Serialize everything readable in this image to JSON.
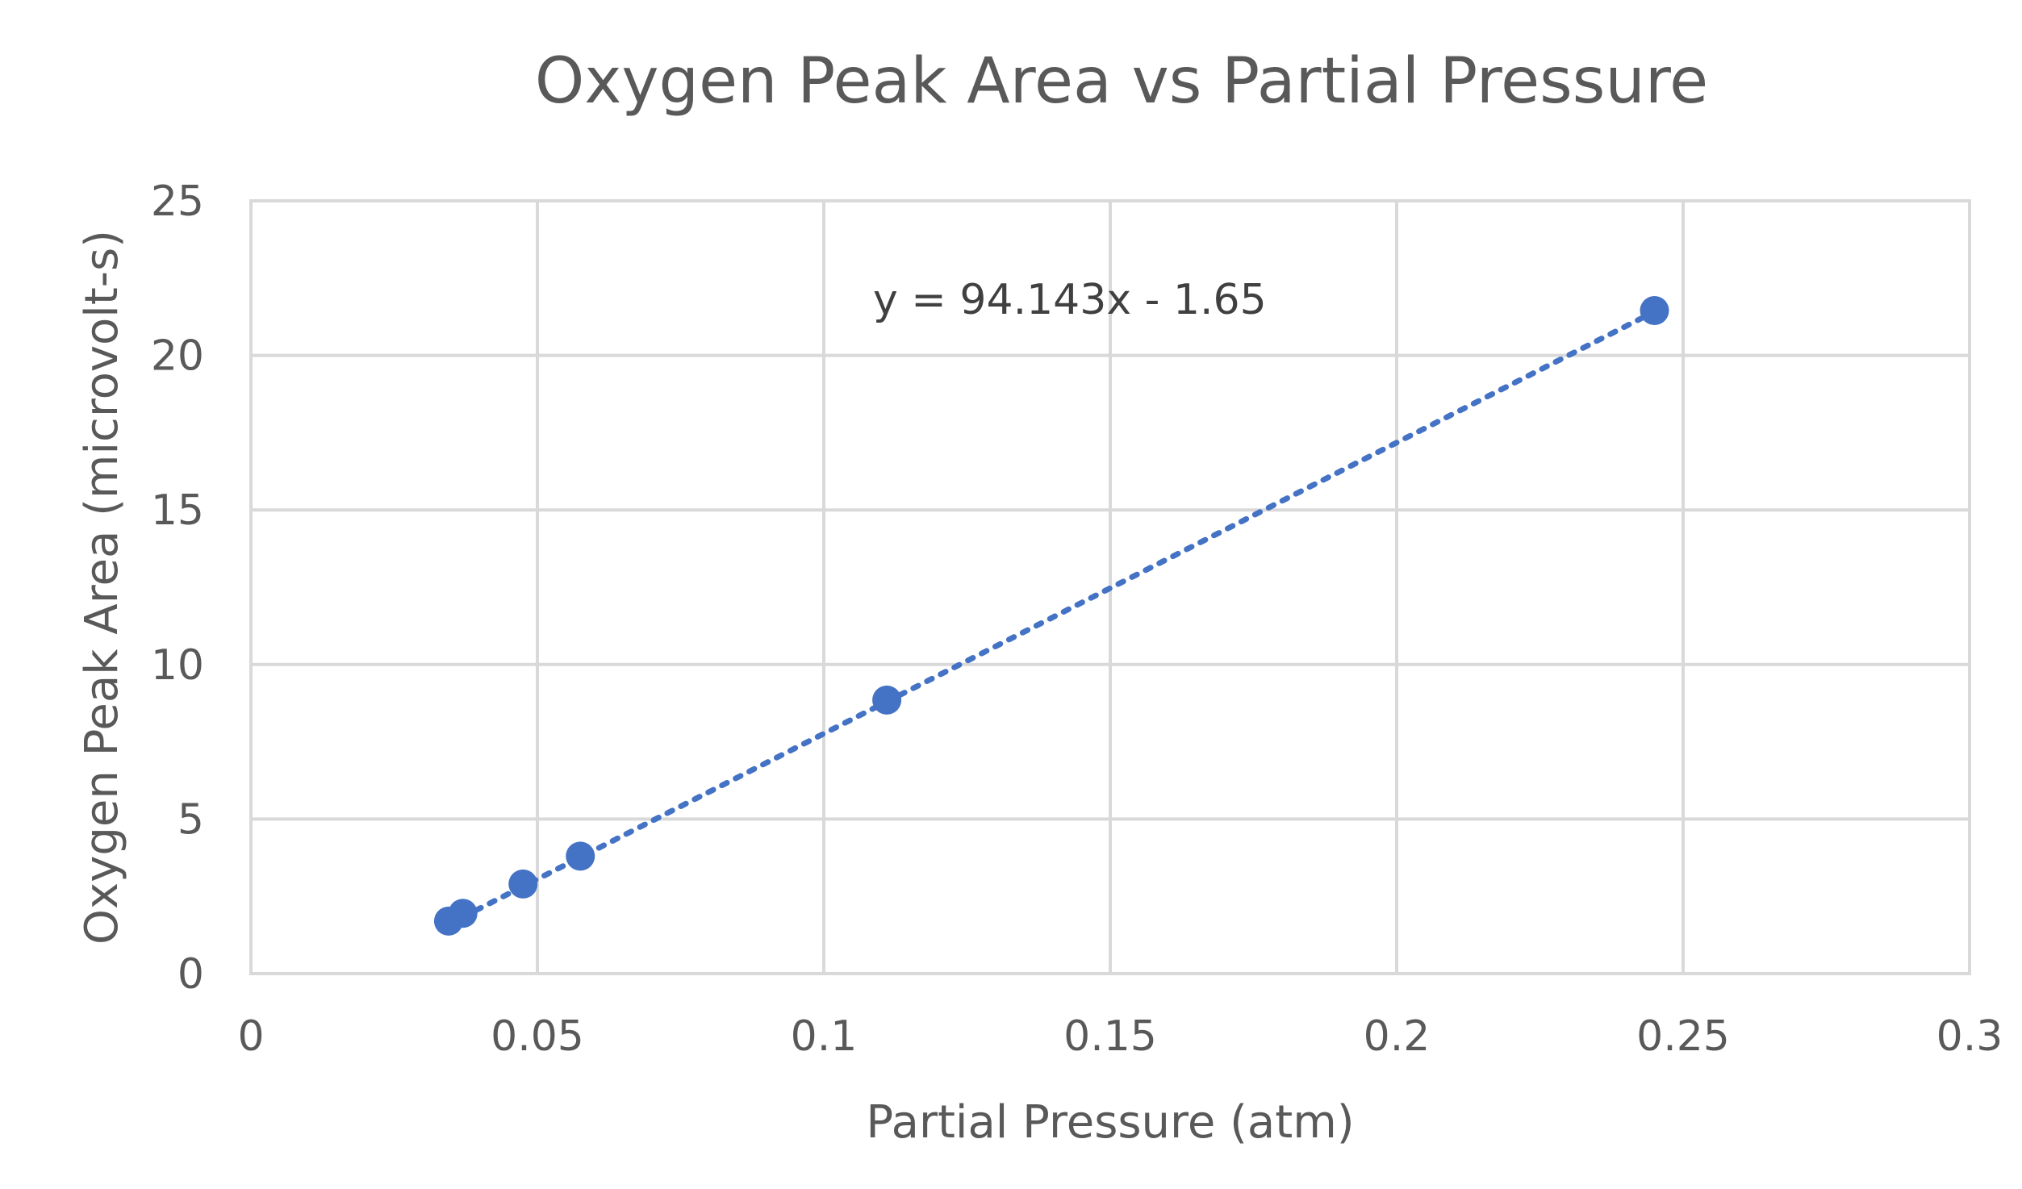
{
  "chart_data": {
    "type": "scatter",
    "title": "Oxygen Peak Area vs Partial Pressure",
    "xlabel": "Partial Pressure (atm)",
    "ylabel": "Oxygen Peak Area (microvolt-s)",
    "xlim": [
      0,
      0.3
    ],
    "ylim": [
      0,
      25
    ],
    "x_ticks": [
      "0",
      "0.05",
      "0.1",
      "0.15",
      "0.2",
      "0.25",
      "0.3"
    ],
    "x_tick_values": [
      0,
      0.05,
      0.1,
      0.15,
      0.2,
      0.25,
      0.3
    ],
    "y_ticks": [
      "0",
      "5",
      "10",
      "15",
      "20",
      "25"
    ],
    "y_tick_values": [
      0,
      5,
      10,
      15,
      20,
      25
    ],
    "grid": true,
    "series": [
      {
        "color": "#4472c4",
        "points": [
          {
            "x": 0.0345,
            "y": 1.7
          },
          {
            "x": 0.037,
            "y": 1.95
          },
          {
            "x": 0.0475,
            "y": 2.9
          },
          {
            "x": 0.0575,
            "y": 3.8
          },
          {
            "x": 0.111,
            "y": 8.85
          },
          {
            "x": 0.245,
            "y": 21.45
          }
        ]
      }
    ],
    "trendline": {
      "type": "linear",
      "style": "dotted",
      "color": "#4472c4",
      "slope": 94.143,
      "intercept": -1.65,
      "x_range": [
        0.0345,
        0.245
      ],
      "equation_label": "y = 94.143x - 1.65"
    }
  }
}
